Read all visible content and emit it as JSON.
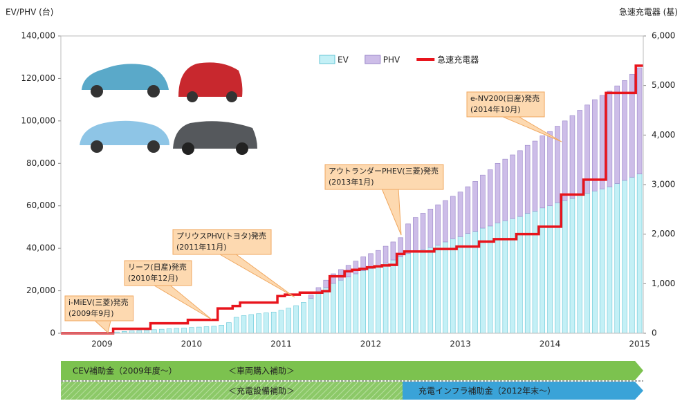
{
  "chart_data": {
    "type": "bar",
    "stacked": true,
    "ylabel": "EV/PHV (台)",
    "y2label": "急速充電器 (基)",
    "legend": "top",
    "categories": [
      null,
      null,
      null,
      null,
      null,
      "2009",
      null,
      null,
      null,
      null,
      null,
      null,
      null,
      null,
      null,
      null,
      null,
      "2010",
      null,
      null,
      null,
      null,
      null,
      null,
      null,
      null,
      null,
      null,
      null,
      "2011",
      null,
      null,
      null,
      null,
      null,
      null,
      null,
      null,
      null,
      null,
      null,
      "2012",
      null,
      null,
      null,
      null,
      null,
      null,
      null,
      null,
      null,
      null,
      null,
      "2013",
      null,
      null,
      null,
      null,
      null,
      null,
      null,
      null,
      null,
      null,
      null,
      "2014",
      null,
      null,
      null,
      null,
      null,
      null,
      null,
      null,
      null,
      null,
      null,
      "2015"
    ],
    "ylim": [
      0,
      140000
    ],
    "yticks": [
      0,
      {
        "value": 20000,
        "label": "20,000"
      },
      {
        "value": 40000,
        "label": "40,000"
      },
      {
        "value": 60000,
        "label": "60,000"
      },
      {
        "value": 80000,
        "label": "80,000"
      },
      {
        "value": 100000,
        "label": "100,000"
      },
      {
        "value": 120000,
        "label": "120,000"
      },
      {
        "value": 140000,
        "label": "140,000"
      }
    ],
    "y2lim": [
      0,
      6000
    ],
    "y2ticks": [
      0,
      {
        "value": 1000,
        "label": "1,000"
      },
      {
        "value": 2000,
        "label": "2,000"
      },
      {
        "value": 3000,
        "label": "3,000"
      },
      {
        "value": 4000,
        "label": "4,000"
      },
      {
        "value": 5000,
        "label": "5,000"
      },
      {
        "value": 6000,
        "label": "6,000"
      }
    ],
    "series": [
      {
        "name": "EV",
        "color": "#c4f0f6",
        "type": "bar",
        "values": [
          0,
          0,
          0,
          0,
          0,
          0,
          300,
          600,
          900,
          1100,
          1300,
          1500,
          1700,
          1900,
          2100,
          2300,
          2500,
          2700,
          2900,
          3100,
          3300,
          3800,
          5000,
          7500,
          8300,
          8800,
          9200,
          9600,
          10000,
          10800,
          11800,
          13000,
          14500,
          16500,
          19000,
          21500,
          23500,
          25000,
          26500,
          28000,
          29500,
          30500,
          31500,
          33000,
          34500,
          36000,
          37500,
          38500,
          39500,
          40500,
          41500,
          43000,
          44500,
          45500,
          47000,
          48000,
          49500,
          50500,
          52000,
          53000,
          54000,
          55000,
          56500,
          57500,
          59000,
          60000,
          61500,
          62500,
          63500,
          65000,
          66000,
          67000,
          68000,
          69000,
          70500,
          72000,
          73500,
          75000
        ]
      },
      {
        "name": "PHV",
        "color": "#cdbde8",
        "type": "bar",
        "values": [
          0,
          0,
          0,
          0,
          0,
          0,
          0,
          0,
          0,
          0,
          0,
          0,
          0,
          0,
          0,
          0,
          0,
          0,
          0,
          0,
          0,
          0,
          0,
          0,
          0,
          0,
          0,
          0,
          0,
          0,
          0,
          0,
          0,
          1500,
          2500,
          3500,
          4500,
          5000,
          5500,
          6000,
          6500,
          7000,
          7500,
          8000,
          8500,
          9000,
          14000,
          16000,
          17000,
          18000,
          19000,
          19500,
          20000,
          21000,
          22000,
          23500,
          25000,
          26500,
          28000,
          29000,
          30000,
          31000,
          32000,
          33000,
          34000,
          35000,
          36000,
          37500,
          39000,
          40000,
          41500,
          43000,
          44000,
          45000,
          46000,
          47000,
          48500,
          50000
        ]
      },
      {
        "name": "急速充電器",
        "color": "#e8141c",
        "type": "line",
        "axis": "y2",
        "values": [
          0,
          0,
          0,
          0,
          0,
          0,
          0,
          90,
          90,
          90,
          90,
          90,
          200,
          200,
          200,
          200,
          200,
          270,
          270,
          270,
          270,
          500,
          500,
          550,
          620,
          620,
          620,
          620,
          620,
          750,
          780,
          780,
          820,
          820,
          820,
          850,
          1150,
          1150,
          1250,
          1280,
          1300,
          1330,
          1350,
          1370,
          1380,
          1600,
          1650,
          1650,
          1650,
          1650,
          1700,
          1700,
          1700,
          1750,
          1750,
          1750,
          1850,
          1850,
          1900,
          1900,
          1900,
          2000,
          2000,
          2000,
          2150,
          2150,
          2150,
          2800,
          2800,
          2800,
          3100,
          3100,
          3100,
          4850,
          4850,
          4850,
          4850,
          5400
        ]
      }
    ],
    "annotations": [
      {
        "lines": [
          "i-MiEV(三菱)発売",
          "(2009年9月)"
        ]
      },
      {
        "lines": [
          "リーフ(日産)発売",
          "(2010年12月)"
        ]
      },
      {
        "lines": [
          "プリウスPHV(トヨタ)発売",
          "(2011年11月)"
        ]
      },
      {
        "lines": [
          "アウトランダーPHEV(三菱)発売",
          "(2013年1月)"
        ]
      },
      {
        "lines": [
          "e-NV200(日産)発売",
          "(2014年10月)"
        ]
      }
    ]
  },
  "programs": {
    "vehicle": {
      "name": "CEV補助金（2009年度～）",
      "scope": "＜車両購入補助＞"
    },
    "equipment": {
      "scope": "＜充電設備補助＞",
      "infra": "充電インフラ補助金（2012年末～）"
    }
  }
}
